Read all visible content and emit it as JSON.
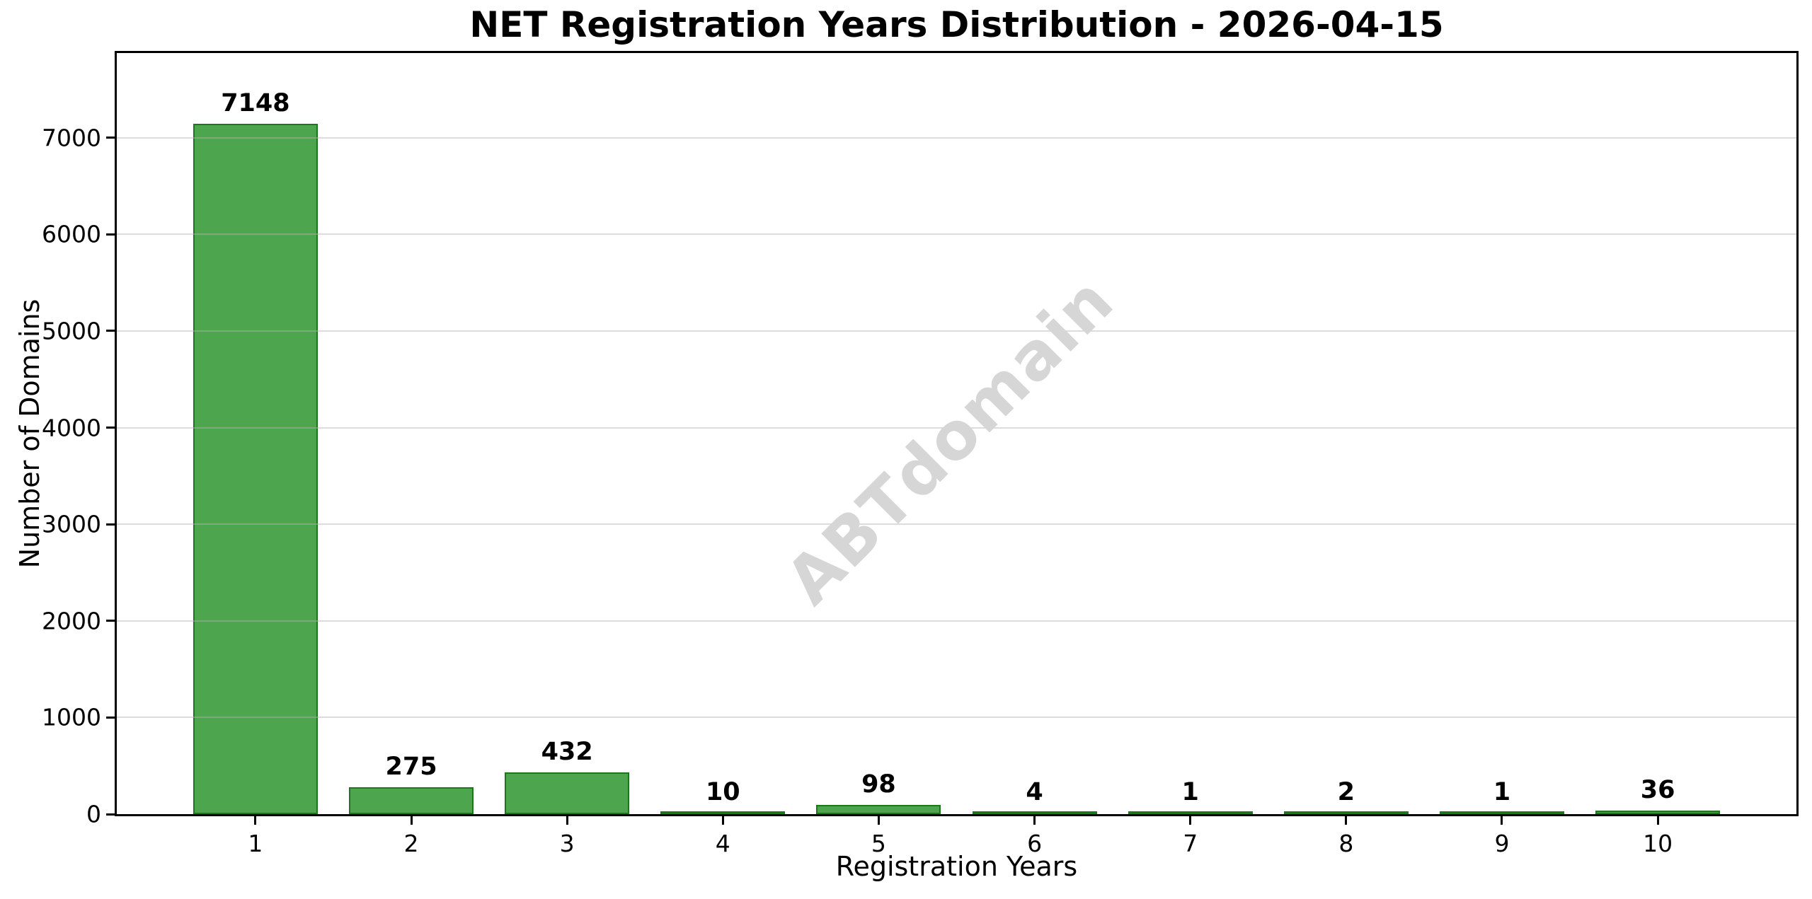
{
  "chart_data": {
    "type": "bar",
    "title": "NET Registration Years Distribution - 2026-04-15",
    "xlabel": "Registration Years",
    "ylabel": "Number of Domains",
    "categories": [
      "1",
      "2",
      "3",
      "4",
      "5",
      "6",
      "7",
      "8",
      "9",
      "10"
    ],
    "x": [
      1,
      2,
      3,
      4,
      5,
      6,
      7,
      8,
      9,
      10
    ],
    "values": [
      7148,
      275,
      432,
      10,
      98,
      4,
      1,
      2,
      1,
      36
    ],
    "bar_value_labels": [
      "7148",
      "275",
      "432",
      "10",
      "98",
      "4",
      "1",
      "2",
      "1",
      "36"
    ],
    "yticks": [
      0,
      1000,
      2000,
      3000,
      4000,
      5000,
      6000,
      7000
    ],
    "ytick_labels": [
      "0",
      "1000",
      "2000",
      "3000",
      "4000",
      "5000",
      "6000",
      "7000"
    ],
    "ylim": [
      0,
      7877
    ],
    "xlim": [
      0.11,
      10.89
    ],
    "bar_width": 0.8,
    "grid": "horizontal-only",
    "legend": "none",
    "watermark": "ABTdomain",
    "colors": {
      "bar_fill": "#4DA64D",
      "bar_edge": "#1F751F",
      "grid": "#B2B2B2",
      "spine": "#000000",
      "text": "#000000",
      "watermark": "#D6D6D6",
      "background": "#FFFFFF"
    }
  }
}
